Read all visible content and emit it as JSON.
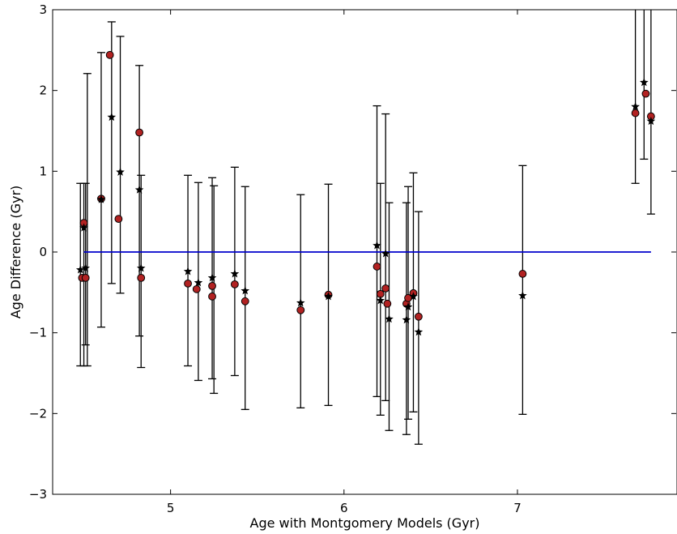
{
  "chart_data": {
    "type": "scatter",
    "xlabel": "Age with Montgomery Models (Gyr)",
    "ylabel": "Age Difference (Gyr)",
    "xlim": [
      4.32,
      7.92
    ],
    "ylim": [
      -3,
      3
    ],
    "xticks": [
      5,
      6,
      7
    ],
    "yticks": [
      -3,
      -2,
      -1,
      0,
      1,
      2,
      3
    ],
    "grid": false,
    "reference_line": {
      "y": 0,
      "x_range": [
        4.5,
        7.77
      ],
      "color": "#0000cc"
    },
    "colors": {
      "circle": "#b22222",
      "star": "#000000",
      "errorbar": "#000000"
    },
    "series": [
      {
        "marker": "circle",
        "points": [
          {
            "x": 4.49,
            "y": -0.32
          },
          {
            "x": 4.5,
            "y": 0.36
          },
          {
            "x": 4.51,
            "y": -0.32
          },
          {
            "x": 4.6,
            "y": 0.66
          },
          {
            "x": 4.65,
            "y": 2.44
          },
          {
            "x": 4.7,
            "y": 0.41
          },
          {
            "x": 4.82,
            "y": 1.48
          },
          {
            "x": 4.83,
            "y": -0.32
          },
          {
            "x": 5.1,
            "y": -0.39
          },
          {
            "x": 5.15,
            "y": -0.46
          },
          {
            "x": 5.24,
            "y": -0.42
          },
          {
            "x": 5.24,
            "y": -0.55
          },
          {
            "x": 5.37,
            "y": -0.4
          },
          {
            "x": 5.43,
            "y": -0.61
          },
          {
            "x": 5.75,
            "y": -0.72
          },
          {
            "x": 5.91,
            "y": -0.53
          },
          {
            "x": 6.19,
            "y": -0.18
          },
          {
            "x": 6.21,
            "y": -0.52
          },
          {
            "x": 6.24,
            "y": -0.45
          },
          {
            "x": 6.25,
            "y": -0.64
          },
          {
            "x": 6.36,
            "y": -0.64
          },
          {
            "x": 6.37,
            "y": -0.57
          },
          {
            "x": 6.4,
            "y": -0.51
          },
          {
            "x": 6.43,
            "y": -0.8
          },
          {
            "x": 7.03,
            "y": -0.27
          },
          {
            "x": 7.68,
            "y": 1.72
          },
          {
            "x": 7.74,
            "y": 1.96
          },
          {
            "x": 7.77,
            "y": 1.68
          }
        ]
      },
      {
        "marker": "star",
        "points": [
          {
            "x": 4.48,
            "y": -0.22
          },
          {
            "x": 4.5,
            "y": 0.3
          },
          {
            "x": 4.51,
            "y": -0.2
          },
          {
            "x": 4.6,
            "y": 0.65
          },
          {
            "x": 4.66,
            "y": 1.67
          },
          {
            "x": 4.71,
            "y": 0.99
          },
          {
            "x": 4.82,
            "y": 0.77
          },
          {
            "x": 4.83,
            "y": -0.2
          },
          {
            "x": 5.1,
            "y": -0.24
          },
          {
            "x": 5.16,
            "y": -0.38
          },
          {
            "x": 5.24,
            "y": -0.32
          },
          {
            "x": 5.37,
            "y": -0.27
          },
          {
            "x": 5.43,
            "y": -0.48
          },
          {
            "x": 5.75,
            "y": -0.63
          },
          {
            "x": 5.91,
            "y": -0.55
          },
          {
            "x": 6.19,
            "y": 0.08
          },
          {
            "x": 6.21,
            "y": -0.6
          },
          {
            "x": 6.24,
            "y": -0.02
          },
          {
            "x": 6.26,
            "y": -0.83
          },
          {
            "x": 6.36,
            "y": -0.84
          },
          {
            "x": 6.37,
            "y": -0.68
          },
          {
            "x": 6.4,
            "y": -0.55
          },
          {
            "x": 6.43,
            "y": -0.99
          },
          {
            "x": 7.03,
            "y": -0.54
          },
          {
            "x": 7.68,
            "y": 1.8
          },
          {
            "x": 7.73,
            "y": 2.1
          },
          {
            "x": 7.77,
            "y": 1.62
          }
        ]
      }
    ],
    "errorbars": [
      {
        "x": 4.48,
        "low": -1.41,
        "high": 0.85
      },
      {
        "x": 4.5,
        "low": -1.41,
        "high": 0.85
      },
      {
        "x": 4.52,
        "low": -1.41,
        "high": 2.21
      },
      {
        "x": 4.51,
        "low": -1.15,
        "high": 0.85
      },
      {
        "x": 4.6,
        "low": -0.93,
        "high": 2.47
      },
      {
        "x": 4.66,
        "low": -0.39,
        "high": 2.85
      },
      {
        "x": 4.71,
        "low": -0.51,
        "high": 2.67
      },
      {
        "x": 4.82,
        "low": -1.04,
        "high": 2.31
      },
      {
        "x": 4.83,
        "low": -1.43,
        "high": 0.95
      },
      {
        "x": 5.1,
        "low": -1.41,
        "high": 0.95
      },
      {
        "x": 5.16,
        "low": -1.59,
        "high": 0.86
      },
      {
        "x": 5.24,
        "low": -1.57,
        "high": 0.92
      },
      {
        "x": 5.25,
        "low": -1.75,
        "high": 0.82
      },
      {
        "x": 5.37,
        "low": -1.53,
        "high": 1.05
      },
      {
        "x": 5.43,
        "low": -1.95,
        "high": 0.81
      },
      {
        "x": 5.75,
        "low": -1.93,
        "high": 0.71
      },
      {
        "x": 5.91,
        "low": -1.9,
        "high": 0.84
      },
      {
        "x": 6.19,
        "low": -1.79,
        "high": 1.81
      },
      {
        "x": 6.21,
        "low": -2.02,
        "high": 0.85
      },
      {
        "x": 6.24,
        "low": -1.84,
        "high": 1.71
      },
      {
        "x": 6.26,
        "low": -2.21,
        "high": 0.61
      },
      {
        "x": 6.36,
        "low": -2.26,
        "high": 0.61
      },
      {
        "x": 6.37,
        "low": -2.07,
        "high": 0.81
      },
      {
        "x": 6.4,
        "low": -1.98,
        "high": 0.98
      },
      {
        "x": 6.43,
        "low": -2.38,
        "high": 0.5
      },
      {
        "x": 7.03,
        "low": -2.01,
        "high": 1.07
      },
      {
        "x": 7.68,
        "low": 0.85,
        "high": 3.0
      },
      {
        "x": 7.73,
        "low": 1.15,
        "high": 3.0
      },
      {
        "x": 7.77,
        "low": 0.47,
        "high": 3.0
      }
    ]
  }
}
